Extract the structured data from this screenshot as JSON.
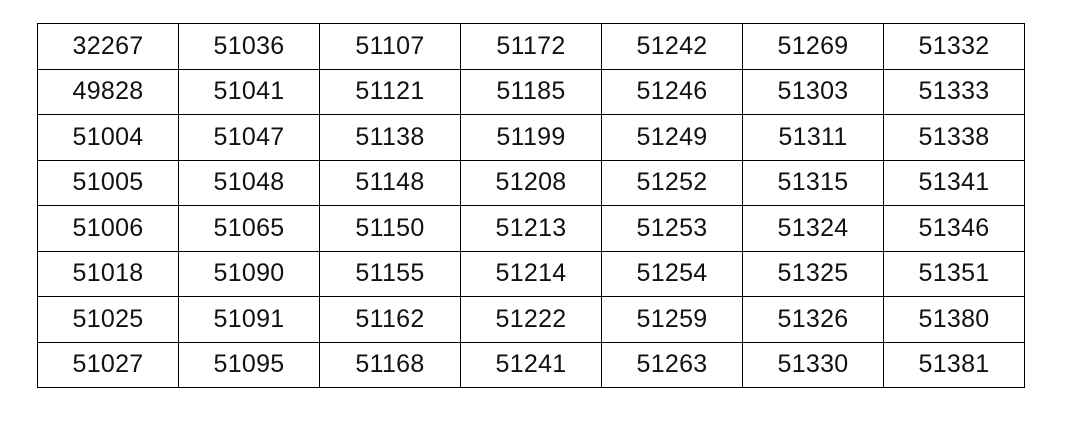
{
  "table": {
    "rows": [
      [
        "32267",
        "51036",
        "51107",
        "51172",
        "51242",
        "51269",
        "51332"
      ],
      [
        "49828",
        "51041",
        "51121",
        "51185",
        "51246",
        "51303",
        "51333"
      ],
      [
        "51004",
        "51047",
        "51138",
        "51199",
        "51249",
        "51311",
        "51338"
      ],
      [
        "51005",
        "51048",
        "51148",
        "51208",
        "51252",
        "51315",
        "51341"
      ],
      [
        "51006",
        "51065",
        "51150",
        "51213",
        "51253",
        "51324",
        "51346"
      ],
      [
        "51018",
        "51090",
        "51155",
        "51214",
        "51254",
        "51325",
        "51351"
      ],
      [
        "51025",
        "51091",
        "51162",
        "51222",
        "51259",
        "51326",
        "51380"
      ],
      [
        "51027",
        "51095",
        "51168",
        "51241",
        "51263",
        "51330",
        "51381"
      ]
    ]
  }
}
